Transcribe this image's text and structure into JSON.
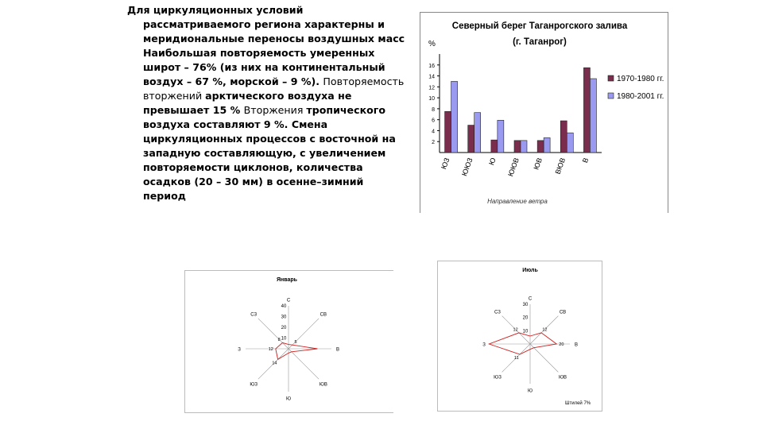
{
  "text": {
    "p1": "Для циркуляционных условий",
    "p2": "рассматриваемого региона характерны и",
    "p3": "меридиональные переносы воздушных масс",
    "p4": "Наибольшая повторяемость умеренных",
    "p5": "широт – 76% (из них на континентальный",
    "p6": "воздух – 67 %, морской – 9 %). ",
    "p6b": "Повторяемость",
    "p7": "вторжений ",
    "p7b": "арктического воздуха не",
    "p8": "превышает 15 % ",
    "p8b": "Вторжения ",
    "p8c": "тропического",
    "p9": "воздуха составляют 9 %. Смена",
    "p10": "циркуляционных процессов с восточной на",
    "p11": "западную составляющую, с увеличением",
    "p12": "повторяемости циклонов, количества",
    "p13": "осадков (20 – 30 мм) в осенне–зимний",
    "p14": "период"
  },
  "colors": {
    "series1": "#7b2d4e",
    "series2": "#9a9af0",
    "rose": "#d02020"
  },
  "chart_data": [
    {
      "type": "bar",
      "title": "Северный берег Таганрогского залива",
      "subtitle": "(г. Таганрог)",
      "ylabel": "%",
      "xlabel": "Направление ветра",
      "categories": [
        "ЮЗ",
        "ЮЮЗ",
        "Ю",
        "ЮЮВ",
        "ЮВ",
        "ВЮВ",
        "В"
      ],
      "yticks": [
        "2",
        "4",
        "6",
        "8",
        "10",
        "12",
        "14",
        "16"
      ],
      "ylim": [
        0,
        18
      ],
      "series": [
        {
          "name": "1970-1980 гг.",
          "values": [
            7.5,
            5,
            2.3,
            2.2,
            2.2,
            5.8,
            15.5
          ]
        },
        {
          "name": "1980-2001 гг.",
          "values": [
            13,
            7.3,
            5.9,
            2.2,
            2.7,
            3.6,
            13.5
          ]
        }
      ],
      "legend": "right"
    },
    {
      "type": "radar",
      "title": "Январь",
      "directions": [
        "С",
        "СВ",
        "В",
        "ЮВ",
        "Ю",
        "ЮЗ",
        "З",
        "СЗ"
      ],
      "ticks": [
        "10",
        "20",
        "30",
        "40"
      ],
      "rmax": 40,
      "values": [
        4,
        5,
        27,
        4,
        4,
        14,
        12,
        8
      ],
      "labels": [
        "",
        "5",
        "",
        "",
        "",
        "14",
        "12",
        "8"
      ]
    },
    {
      "type": "radar",
      "title": "Июль",
      "directions": [
        "С",
        "СВ",
        "В",
        "ЮВ",
        "Ю",
        "ЮЗ",
        "З",
        "СЗ"
      ],
      "ticks": [
        "10",
        "20",
        "30"
      ],
      "rmax": 30,
      "values": [
        6,
        12,
        20,
        4,
        4,
        11,
        31,
        12
      ],
      "labels": [
        "",
        "12",
        "20",
        "",
        "",
        "11",
        "",
        "12"
      ],
      "note": "Штилей 7%"
    }
  ]
}
